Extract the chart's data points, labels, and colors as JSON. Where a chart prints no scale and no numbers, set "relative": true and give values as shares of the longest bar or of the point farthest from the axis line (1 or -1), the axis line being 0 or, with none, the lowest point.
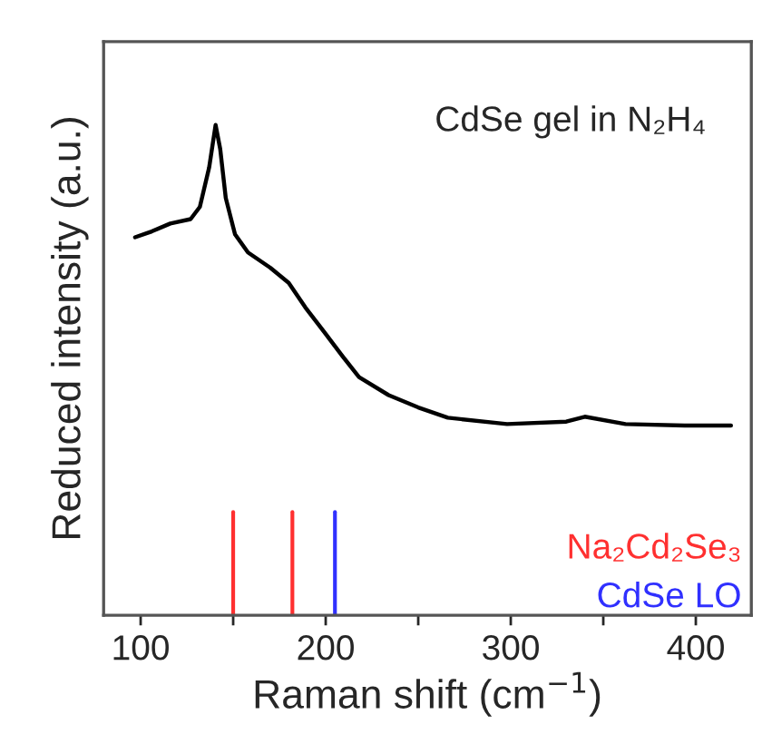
{
  "chart_data": {
    "type": "line",
    "relative": true,
    "xlabel": "Raman shift (cm$^{−1}$)",
    "ylabel": "Reduced intensity (a.u.)",
    "annotations": [
      "CdSe gel in N₂H₄"
    ],
    "xlim": [
      80,
      430
    ],
    "xticks": [
      100,
      {
        "value": 150,
        "label": null
      },
      200,
      {
        "value": 250,
        "label": null
      },
      300,
      {
        "value": 350,
        "label": null
      },
      400
    ],
    "tick_labels": "x",
    "grid": false,
    "legend": false,
    "series": [
      {
        "color": "#000000",
        "x": [
          97,
          106,
          116,
          127,
          132,
          137,
          140.5,
          143,
          146,
          151,
          158,
          170,
          180,
          189,
          199,
          209,
          218,
          234,
          250,
          266,
          298,
          330,
          340,
          362,
          394,
          419
        ],
        "values": [
          0.771,
          0.783,
          0.799,
          0.808,
          0.833,
          0.913,
          1.0,
          0.951,
          0.851,
          0.777,
          0.74,
          0.709,
          0.678,
          0.628,
          0.579,
          0.529,
          0.486,
          0.449,
          0.424,
          0.403,
          0.39,
          0.395,
          0.405,
          0.39,
          0.387,
          0.387
        ]
      }
    ],
    "ref_lines": [
      {
        "axis": "x",
        "value": 150,
        "label": "Na₂Cd₂Se₃",
        "color": "#ff3030"
      },
      {
        "axis": "x",
        "value": 182,
        "label": null,
        "color": "#ff3030"
      },
      {
        "axis": "x",
        "value": 205,
        "label": "CdSe LO",
        "color": "#3030ff"
      }
    ]
  }
}
